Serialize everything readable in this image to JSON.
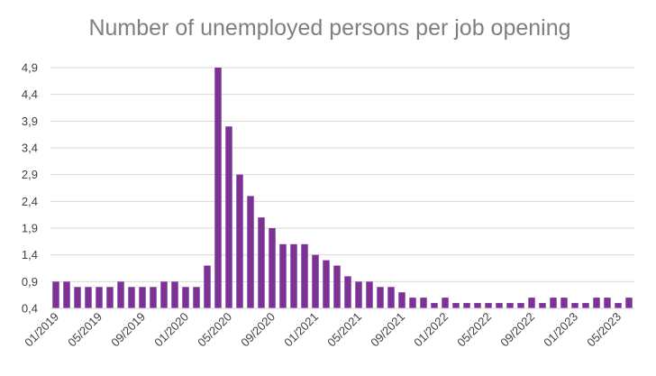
{
  "chart_data": {
    "type": "bar",
    "title": "Number of unemployed persons per job opening",
    "xlabel": "",
    "ylabel": "",
    "ylim": [
      0.4,
      4.9
    ],
    "yticks": [
      "0,4",
      "0,9",
      "1,4",
      "1,9",
      "2,4",
      "2,9",
      "3,4",
      "3,9",
      "4,4",
      "4,9"
    ],
    "ytick_values": [
      0.4,
      0.9,
      1.4,
      1.9,
      2.4,
      2.9,
      3.4,
      3.9,
      4.4,
      4.9
    ],
    "grid": true,
    "bar_color": "#7b3294",
    "categories": [
      "01/2019",
      "02/2019",
      "03/2019",
      "04/2019",
      "05/2019",
      "06/2019",
      "07/2019",
      "08/2019",
      "09/2019",
      "10/2019",
      "11/2019",
      "12/2019",
      "01/2020",
      "02/2020",
      "03/2020",
      "04/2020",
      "05/2020",
      "06/2020",
      "07/2020",
      "08/2020",
      "09/2020",
      "10/2020",
      "11/2020",
      "12/2020",
      "01/2021",
      "02/2021",
      "03/2021",
      "04/2021",
      "05/2021",
      "06/2021",
      "07/2021",
      "08/2021",
      "09/2021",
      "10/2021",
      "11/2021",
      "12/2021",
      "01/2022",
      "02/2022",
      "03/2022",
      "04/2022",
      "05/2022",
      "06/2022",
      "07/2022",
      "08/2022",
      "09/2022",
      "10/2022",
      "11/2022",
      "12/2022",
      "01/2023",
      "02/2023",
      "03/2023",
      "04/2023",
      "05/2023",
      "06/2023"
    ],
    "values": [
      0.9,
      0.9,
      0.8,
      0.8,
      0.8,
      0.8,
      0.9,
      0.8,
      0.8,
      0.8,
      0.9,
      0.9,
      0.8,
      0.8,
      1.2,
      4.9,
      3.8,
      2.9,
      2.5,
      2.1,
      1.9,
      1.6,
      1.6,
      1.6,
      1.4,
      1.3,
      1.2,
      1.0,
      0.9,
      0.9,
      0.8,
      0.8,
      0.7,
      0.6,
      0.6,
      0.5,
      0.6,
      0.5,
      0.5,
      0.5,
      0.5,
      0.5,
      0.5,
      0.5,
      0.6,
      0.5,
      0.6,
      0.6,
      0.5,
      0.5,
      0.6,
      0.6,
      0.5,
      0.6
    ],
    "xtick_labels": [
      "01/2019",
      "05/2019",
      "09/2019",
      "01/2020",
      "05/2020",
      "09/2020",
      "01/2021",
      "05/2021",
      "09/2021",
      "01/2022",
      "05/2022",
      "09/2022",
      "01/2023",
      "05/2023"
    ]
  }
}
